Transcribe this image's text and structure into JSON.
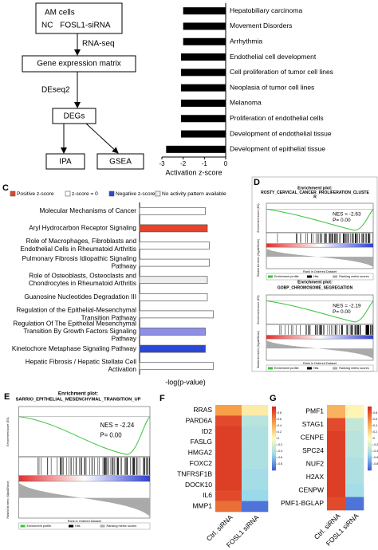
{
  "flowchart": {
    "nodes": [
      {
        "lines": [
          "AM cells",
          "NC FOSL1-siRNA"
        ]
      },
      {
        "label": "Gene expression matrix"
      },
      {
        "label": "DEGs"
      },
      {
        "label": "IPA"
      },
      {
        "label": "GSEA"
      }
    ],
    "edges": [
      {
        "label": "RNA-seq"
      },
      {
        "label": "DEseq2"
      }
    ]
  },
  "panel_labels": [
    "C",
    "D",
    "E",
    "F",
    "G"
  ],
  "chart_data": [
    {
      "type": "bar",
      "orientation": "horizontal",
      "x_label": "Activation z-score",
      "categories": [
        "Hepatobiliary carcinoma",
        "Movement Disorders",
        "Arrhythmia",
        "Endothelial cell development",
        "Cell proliferation of tumor cell lines",
        "Neoplasia of tumor cell lines",
        "Melanoma",
        "Proliferation of endothelial cells",
        "Development of endothelial tissue",
        "Development of epithelial tissue"
      ],
      "values": [
        -2.0,
        -2.0,
        -2.0,
        -2.1,
        -2.1,
        -2.1,
        -2.1,
        -2.1,
        -2.1,
        -2.8
      ],
      "color": "#000000",
      "xlim": [
        -3,
        0
      ],
      "xticks": [
        -3,
        -2,
        -1,
        0
      ]
    },
    {
      "type": "bar",
      "orientation": "horizontal",
      "x_label": "-log(p-value)",
      "legend": [
        {
          "name": "Positive z-score",
          "color": "#e8432a"
        },
        {
          "name": "z-score = 0",
          "color": "#ffffff"
        },
        {
          "name": "Negative z-score",
          "color": "#2b47d6"
        },
        {
          "name": "No activity pattern available",
          "color": "#eeeeee"
        }
      ],
      "categories": [
        "Molecular Mechanisms of Cancer",
        "Aryl Hydrocarbon Receptor Signaling",
        "Role of Macrophages, Fibroblasts and Endothelial Cells in Rheumatoid Arthritis",
        "Pulmonary Fibrosis Idiopathic Signaling Pathway",
        "Role of Osteoblasts, Osteoclasts and Chondrocytes in Rheumatoid Arthritis",
        "Guanosine Nucleotides Degradation III",
        "Regulation of the Epithelial-Mesenchymal Transition Pathway",
        "Regulation Of The Epithelial Mesenchymal Transition By Growth Factors Signaling Pathway",
        "Kinetochore Metaphase Signaling Pathway",
        "Hepatic Fibrosis / Hepatic Stellate Cell Activation"
      ],
      "values": [
        3.3,
        3.4,
        3.5,
        3.5,
        3.4,
        3.4,
        3.7,
        3.3,
        3.3,
        3.7
      ],
      "colors": [
        "#ffffff",
        "#e8432a",
        "#ffffff",
        "#ffffff",
        "#eeeeee",
        "#ffffff",
        "#ffffff",
        "#8e8fe6",
        "#2b47d6",
        "#ffffff"
      ],
      "xlim": [
        0,
        5
      ]
    },
    {
      "type": "heatmap",
      "categories": [
        "RRAS",
        "PARD6A",
        "ID2",
        "FASLG",
        "HMGA2",
        "FOXC2",
        "TNFRSF1B",
        "DOCK10",
        "IL6",
        "MMP1"
      ],
      "series": [
        {
          "name": "Ctrl. siRNA",
          "values": [
            0.5,
            0.85,
            0.9,
            0.9,
            0.9,
            0.9,
            0.9,
            0.9,
            0.85,
            0.7
          ]
        },
        {
          "name": "FOSL1 siRNA",
          "values": [
            0.1,
            -0.35,
            -0.4,
            -0.4,
            -0.4,
            -0.4,
            -0.45,
            -0.45,
            -0.5,
            -0.9
          ]
        }
      ],
      "colormap": [
        "#3b5bd6",
        "#9ad9ea",
        "#fffdbf",
        "#f7a048",
        "#d7261e"
      ],
      "vlim": [
        -1,
        1
      ],
      "cticks": [
        0.8,
        0.6,
        0.4,
        0.2,
        0,
        -0.2,
        -0.4,
        -0.6,
        -0.8
      ]
    },
    {
      "type": "heatmap",
      "categories": [
        "PMF1",
        "STAG1",
        "CENPE",
        "SPC24",
        "NUF2",
        "H2AX",
        "CENPW",
        "PMF1-BGLAP"
      ],
      "series": [
        {
          "name": "Ctrl. siRNA",
          "values": [
            0.4,
            0.85,
            0.9,
            0.9,
            0.9,
            0.9,
            0.9,
            0.85
          ]
        },
        {
          "name": "FOSL1 siRNA",
          "values": [
            0.05,
            -0.3,
            -0.35,
            -0.35,
            -0.4,
            -0.4,
            -0.45,
            -0.9
          ]
        }
      ],
      "colormap": [
        "#3b5bd6",
        "#9ad9ea",
        "#fffdbf",
        "#f7a048",
        "#d7261e"
      ],
      "vlim": [
        -1,
        1
      ],
      "cticks": [
        0.8,
        0.6,
        0.4,
        0.2,
        0,
        -0.2,
        -0.4,
        -0.6,
        -0.8
      ]
    }
  ],
  "gsea": [
    {
      "heading": "Enrichment plot:",
      "name": "ROSTY_CERVICAL_CANCER_PROLIFERATION_CLUSTER",
      "nes_label": "NES = -2.63",
      "p_label": "P= 0.00",
      "y_label": "Enrichment score (ES)",
      "y2_label": "Ranked list metric (Signal2Noise)",
      "x_label": "Rank in Ordered Dataset"
    },
    {
      "heading": "Enrichment plot:",
      "name": "GOBP_CHROMOSOME_SEGREGATION",
      "nes_label": "NES = -2.19",
      "p_label": "P= 0.00",
      "y_label": "Enrichment score (ES)",
      "y2_label": "Ranked list metric (Signal2Noise)",
      "x_label": "Rank in Ordered Dataset"
    },
    {
      "heading": "Enrichment plot:",
      "name": "SARRIO_EPITHELIAL_MESENCHYMAL_TRANSITION_UP",
      "nes_label": "NES = -2.24",
      "p_label": "P= 0.00",
      "y_label": "Enrichment score (ES)",
      "y2_label": "Ranked list metric (Signal2Noise)",
      "x_label": "Rank in Ordered Dataset"
    }
  ],
  "gsea_legend": [
    "Enrichment profile",
    "Hits",
    "Ranking metric scores"
  ]
}
